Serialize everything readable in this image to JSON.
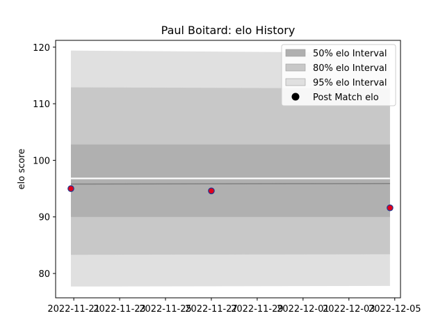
{
  "chart_data": {
    "type": "line",
    "title": "Paul Boitard: elo History",
    "xlabel": "",
    "ylabel": "elo score",
    "x_ticks": [
      "2022-11-21",
      "2022-11-23",
      "2022-11-25",
      "2022-11-27",
      "2022-11-29",
      "2022-12-01",
      "2022-12-03",
      "2022-12-05"
    ],
    "xlim": [
      "2022-11-20T05:00",
      "2022-12-05T06:00"
    ],
    "y_ticks": [
      80,
      90,
      100,
      110,
      120
    ],
    "ylim": [
      75.7,
      121.2
    ],
    "grid": false,
    "legend_position": "top-right",
    "series": [
      {
        "name": "Post Match elo",
        "kind": "scatter",
        "x": [
          "2022-11-20T21:00",
          "2022-11-27T00:00",
          "2022-12-04T19:00"
        ],
        "y": [
          95.0,
          94.6,
          91.6
        ],
        "color": "#e0001b",
        "edge_color": "#1f3a93"
      },
      {
        "name": "50% elo Interval",
        "kind": "band",
        "color": "#b0b0b0",
        "x": [
          "2022-11-20T21:00",
          "2022-12-04T19:00"
        ],
        "upper": [
          102.8,
          102.8
        ],
        "lower": [
          90.0,
          90.0
        ]
      },
      {
        "name": "80% elo Interval",
        "kind": "band",
        "color": "#c8c8c8",
        "x": [
          "2022-11-20T21:00",
          "2022-12-04T19:00"
        ],
        "upper": [
          112.9,
          112.7
        ],
        "lower": [
          83.3,
          83.4
        ]
      },
      {
        "name": "95% elo Interval",
        "kind": "band",
        "color": "#e0e0e0",
        "x": [
          "2022-11-20T21:00",
          "2022-12-04T19:00"
        ],
        "upper": [
          119.4,
          119.0
        ],
        "lower": [
          77.7,
          77.8
        ]
      },
      {
        "name": "",
        "kind": "line",
        "x": [
          "2022-11-20T21:00",
          "2022-12-04T19:00"
        ],
        "y": [
          95.8,
          95.9
        ],
        "color": "#808080"
      },
      {
        "name": "",
        "kind": "line",
        "x": [
          "2022-11-20T21:00",
          "2022-12-04T19:00"
        ],
        "y": [
          96.8,
          96.8
        ],
        "color": "#ffffff"
      }
    ],
    "legend": [
      {
        "label": "50% elo Interval",
        "marker": "patch",
        "color": "#b0b0b0"
      },
      {
        "label": "80% elo Interval",
        "marker": "patch",
        "color": "#c8c8c8"
      },
      {
        "label": "95% elo Interval",
        "marker": "patch",
        "color": "#e0e0e0"
      },
      {
        "label": "Post Match elo",
        "marker": "circle",
        "color": "#000000"
      }
    ]
  }
}
